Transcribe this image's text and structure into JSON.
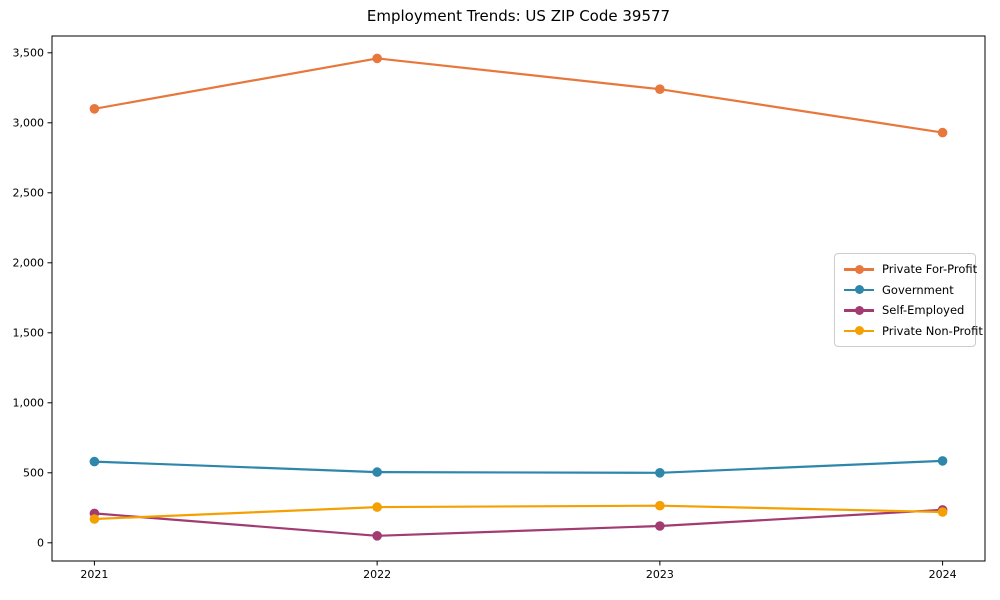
{
  "page": {
    "title": "Employment Trends: US ZIP Code 39577"
  },
  "chart_data": {
    "type": "line",
    "title": "Employment Trends: US ZIP Code 39577",
    "xlabel": "",
    "ylabel": "",
    "categories": [
      2021,
      2022,
      2023,
      2024
    ],
    "x_tick_labels": [
      "2021",
      "2022",
      "2023",
      "2024"
    ],
    "series": [
      {
        "name": "Private For-Profit",
        "color": "#E8773C",
        "values": [
          3100,
          3460,
          3240,
          2930
        ]
      },
      {
        "name": "Government",
        "color": "#2E86AB",
        "values": [
          580,
          505,
          500,
          585
        ]
      },
      {
        "name": "Self-Employed",
        "color": "#A23B72",
        "values": [
          210,
          50,
          120,
          235
        ]
      },
      {
        "name": "Private Non-Profit",
        "color": "#F5A002",
        "values": [
          170,
          255,
          265,
          220
        ]
      }
    ],
    "yticks": [
      0,
      500,
      1000,
      1500,
      2000,
      2500,
      3000,
      3500
    ],
    "ytick_labels": [
      "0",
      "500",
      "1,000",
      "1,500",
      "2,000",
      "2,500",
      "3,000",
      "3,500"
    ],
    "xlim": [
      2020.85,
      2024.15
    ],
    "ylim": [
      -130,
      3620
    ],
    "grid": false,
    "legend_position": "center-right",
    "marker": "circle",
    "line_width": 2.2,
    "marker_radius": 4.8,
    "spine_color": "#000000",
    "background": "#ffffff"
  }
}
